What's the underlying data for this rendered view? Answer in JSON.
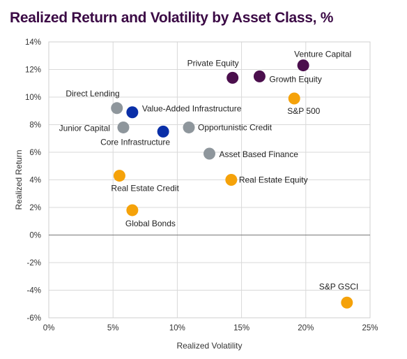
{
  "chart_data": {
    "type": "scatter",
    "title": "Realized Return and Volatility by Asset Class, %",
    "xlabel": "Realized Volatility",
    "ylabel": "Realized Return",
    "xlim": [
      0,
      25
    ],
    "ylim": [
      -6,
      14
    ],
    "x_ticks": [
      0,
      5,
      10,
      15,
      20,
      25
    ],
    "y_ticks": [
      -6,
      -4,
      -2,
      0,
      2,
      4,
      6,
      8,
      10,
      12,
      14
    ],
    "tick_format": "percent",
    "grid": true,
    "legend": "none",
    "colors": {
      "title": "#3b0a45",
      "private": "#4b0f4d",
      "public": "#f5a20a",
      "credit": "#8e969c",
      "infrastructure": "#0a2fa8"
    },
    "points": [
      {
        "label": "Venture Capital",
        "x": 19.8,
        "y": 12.3,
        "group": "private"
      },
      {
        "label": "Private Equity",
        "x": 14.3,
        "y": 11.4,
        "group": "private"
      },
      {
        "label": "Growth Equity",
        "x": 16.4,
        "y": 11.5,
        "group": "private"
      },
      {
        "label": "S&P 500",
        "x": 19.1,
        "y": 9.9,
        "group": "public"
      },
      {
        "label": "Direct Lending",
        "x": 5.3,
        "y": 9.2,
        "group": "credit"
      },
      {
        "label": "Value-Added Infrastructure",
        "x": 6.5,
        "y": 8.9,
        "group": "infrastructure"
      },
      {
        "label": "Junior Capital",
        "x": 5.8,
        "y": 7.8,
        "group": "credit"
      },
      {
        "label": "Core Infrastructure",
        "x": 8.9,
        "y": 7.5,
        "group": "infrastructure"
      },
      {
        "label": "Opportunistic Credit",
        "x": 10.9,
        "y": 7.8,
        "group": "credit"
      },
      {
        "label": "Asset Based Finance",
        "x": 12.5,
        "y": 5.9,
        "group": "credit"
      },
      {
        "label": "Real Estate Credit",
        "x": 5.5,
        "y": 4.3,
        "group": "public"
      },
      {
        "label": "Real Estate Equity",
        "x": 14.2,
        "y": 4.0,
        "group": "public"
      },
      {
        "label": "Global Bonds",
        "x": 6.5,
        "y": 1.8,
        "group": "public"
      },
      {
        "label": "S&P GSCI",
        "x": 23.2,
        "y": -4.9,
        "group": "public"
      }
    ]
  }
}
